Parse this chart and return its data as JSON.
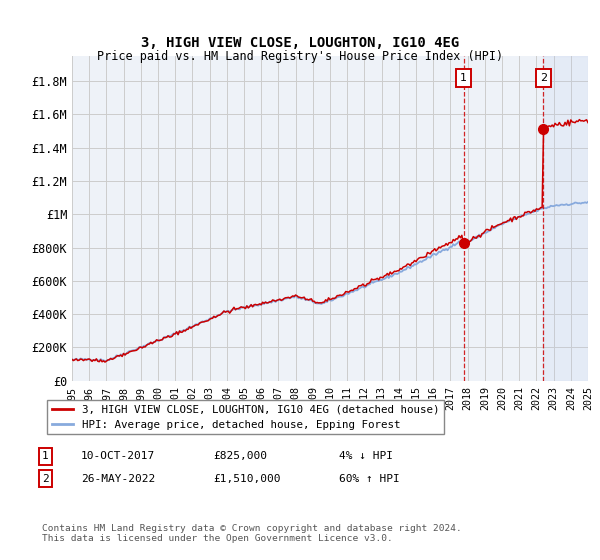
{
  "title": "3, HIGH VIEW CLOSE, LOUGHTON, IG10 4EG",
  "subtitle": "Price paid vs. HM Land Registry's House Price Index (HPI)",
  "ylabel_ticks": [
    "£0",
    "£200K",
    "£400K",
    "£600K",
    "£800K",
    "£1M",
    "£1.2M",
    "£1.4M",
    "£1.6M",
    "£1.8M"
  ],
  "ytick_values": [
    0,
    200000,
    400000,
    600000,
    800000,
    1000000,
    1200000,
    1400000,
    1600000,
    1800000
  ],
  "ylim": [
    0,
    1950000
  ],
  "year_start": 1995,
  "year_end": 2025,
  "sale1_date": 2017.78,
  "sale1_price": 825000,
  "sale2_date": 2022.4,
  "sale2_price": 1510000,
  "sale1_label": "10-OCT-2017",
  "sale1_price_label": "£825,000",
  "sale1_hpi": "4% ↓ HPI",
  "sale2_label": "26-MAY-2022",
  "sale2_price_label": "£1,510,000",
  "sale2_hpi": "60% ↑ HPI",
  "line1_color": "#cc0000",
  "line2_color": "#88aadd",
  "background_plot": "#eef2f8",
  "background_fig": "#ffffff",
  "grid_color": "#cccccc",
  "footnote": "Contains HM Land Registry data © Crown copyright and database right 2024.\nThis data is licensed under the Open Government Licence v3.0.",
  "legend1": "3, HIGH VIEW CLOSE, LOUGHTON, IG10 4EG (detached house)",
  "legend2": "HPI: Average price, detached house, Epping Forest"
}
